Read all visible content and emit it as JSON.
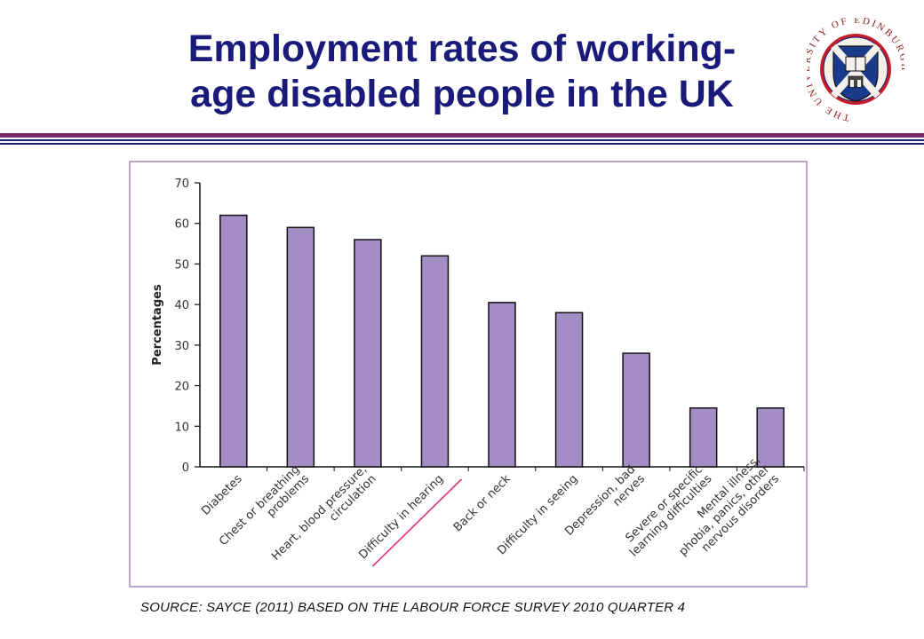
{
  "slide": {
    "title_line1": "Employment rates of working-",
    "title_line2": "age disabled people in the UK",
    "logo_text": "THE UNIVERSITY OF EDINBURGH",
    "source": "SOURCE: SAYCE (2011) BASED ON THE LABOUR FORCE SURVEY 2010 QUARTER 4"
  },
  "colors": {
    "title": "#1a1a7a",
    "bar_fill": "#a48dc5",
    "bar_stroke": "#111111",
    "frame": "#b8a6cc",
    "annotation_line": "#e0307a",
    "rule_purple": "#7a2a6a",
    "rule_navy": "#1a1a7a"
  },
  "chart_data": {
    "type": "bar",
    "ylabel": "Percentages",
    "xlabel": "",
    "ylim": [
      0,
      70
    ],
    "yticks": [
      0,
      10,
      20,
      30,
      40,
      50,
      60,
      70
    ],
    "grid": false,
    "categories": [
      [
        "Diabetes"
      ],
      [
        "Chest or breathing",
        "problems"
      ],
      [
        "Heart, blood pressure,",
        "circulation"
      ],
      [
        "Difficulty in hearing"
      ],
      [
        "Back or neck"
      ],
      [
        "Difficulty in seeing"
      ],
      [
        "Depression, bad",
        "nerves"
      ],
      [
        "Severe or specific",
        "learning difficulties"
      ],
      [
        "Mental illness,",
        "phobia, panics, other",
        "nervous disorders"
      ]
    ],
    "values": [
      62,
      59,
      56,
      52,
      40.5,
      38,
      28,
      14.5,
      14.5
    ],
    "annotation": "underline under 'Difficulty in hearing'"
  }
}
